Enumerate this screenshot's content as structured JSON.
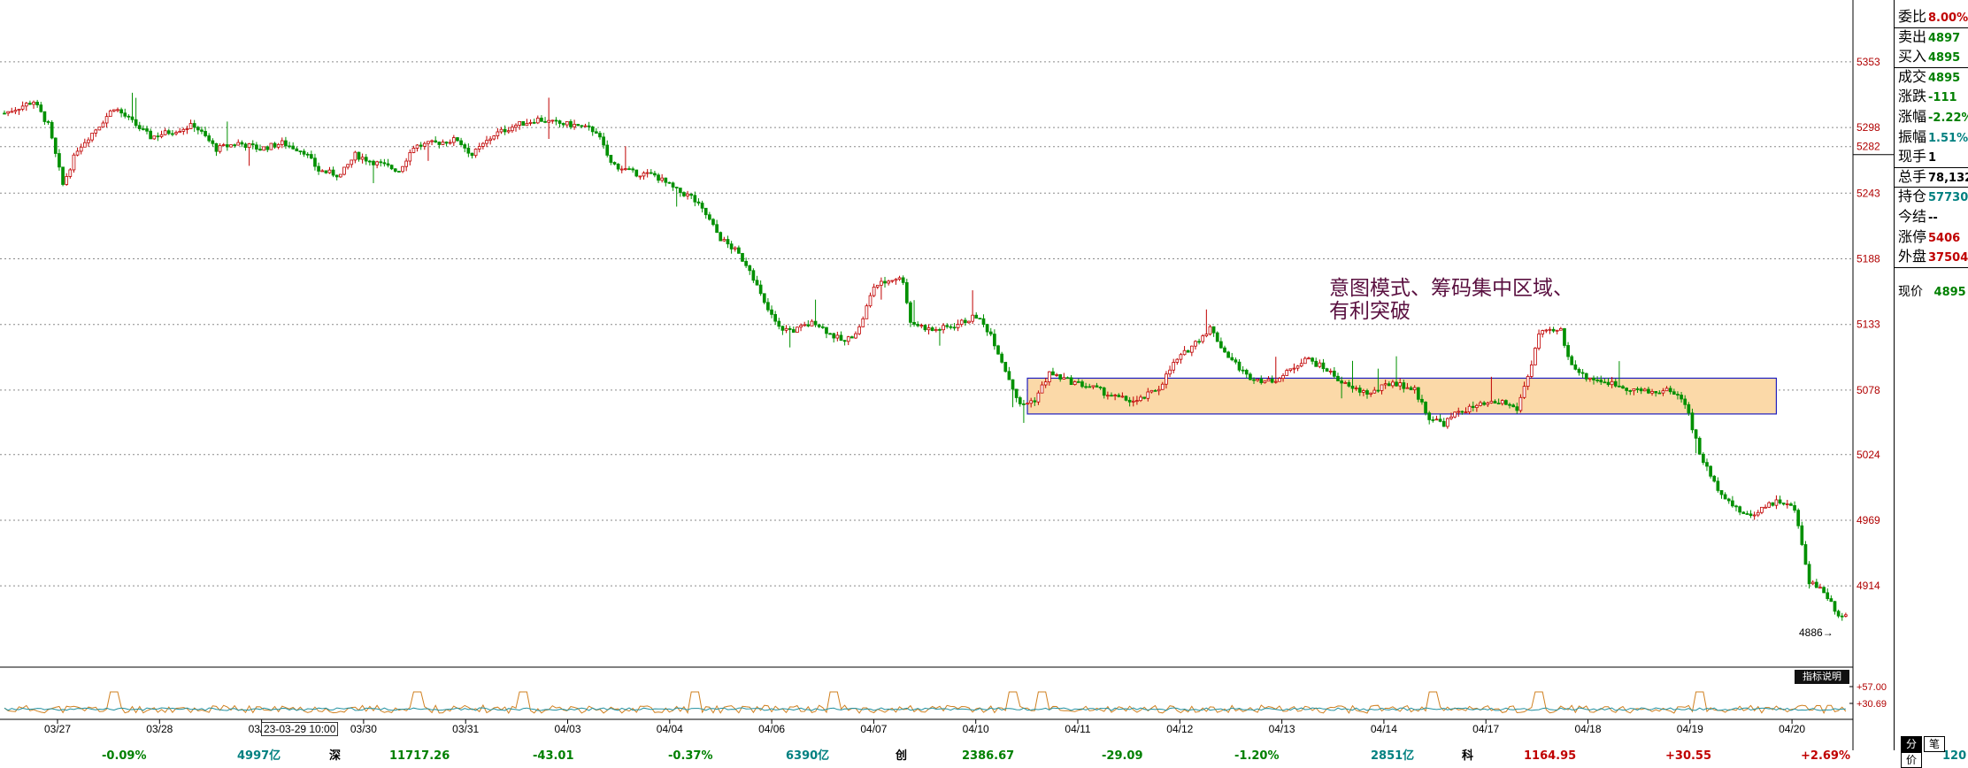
{
  "chart_data": {
    "type": "candlestick",
    "y_ticks": [
      "5353",
      "5298",
      "5282",
      "5243",
      "5188",
      "5133",
      "5078",
      "5024",
      "4969",
      "4914"
    ],
    "ylim": [
      4860,
      5390
    ],
    "x_ticks": [
      "03/27",
      "03/28",
      "03/29",
      "03/30",
      "03/31",
      "04/03",
      "04/04",
      "04/06",
      "04/07",
      "04/10",
      "04/11",
      "04/12",
      "04/13",
      "04/14",
      "04/17",
      "04/18",
      "04/19",
      "04/20"
    ],
    "last_price_label": "4886",
    "highlight_box": {
      "y_top": 5088,
      "y_bottom": 5058,
      "x_start_index": 280,
      "x_end_index": 485
    },
    "indicator_ticks": [
      "+57.00",
      "+30.69"
    ],
    "candles_path": [
      [
        0,
        5310
      ],
      [
        8,
        5320
      ],
      [
        12,
        5300
      ],
      [
        16,
        5250
      ],
      [
        20,
        5280
      ],
      [
        26,
        5300
      ],
      [
        30,
        5315
      ],
      [
        34,
        5305
      ],
      [
        40,
        5290
      ],
      [
        46,
        5295
      ],
      [
        52,
        5300
      ],
      [
        58,
        5280
      ],
      [
        64,
        5285
      ],
      [
        70,
        5280
      ],
      [
        76,
        5285
      ],
      [
        82,
        5278
      ],
      [
        86,
        5262
      ],
      [
        92,
        5258
      ],
      [
        96,
        5275
      ],
      [
        102,
        5268
      ],
      [
        108,
        5262
      ],
      [
        112,
        5282
      ],
      [
        118,
        5285
      ],
      [
        124,
        5288
      ],
      [
        128,
        5275
      ],
      [
        134,
        5292
      ],
      [
        140,
        5300
      ],
      [
        146,
        5305
      ],
      [
        150,
        5302
      ],
      [
        156,
        5300
      ],
      [
        162,
        5295
      ],
      [
        166,
        5268
      ],
      [
        172,
        5260
      ],
      [
        178,
        5258
      ],
      [
        184,
        5245
      ],
      [
        188,
        5240
      ],
      [
        192,
        5225
      ],
      [
        196,
        5205
      ],
      [
        200,
        5195
      ],
      [
        204,
        5180
      ],
      [
        208,
        5150
      ],
      [
        212,
        5130
      ],
      [
        216,
        5128
      ],
      [
        222,
        5135
      ],
      [
        226,
        5125
      ],
      [
        230,
        5118
      ],
      [
        234,
        5130
      ],
      [
        238,
        5165
      ],
      [
        244,
        5172
      ],
      [
        246,
        5170
      ],
      [
        248,
        5135
      ],
      [
        254,
        5128
      ],
      [
        260,
        5132
      ],
      [
        266,
        5140
      ],
      [
        270,
        5125
      ],
      [
        274,
        5095
      ],
      [
        278,
        5065
      ],
      [
        282,
        5070
      ],
      [
        286,
        5092
      ],
      [
        292,
        5085
      ],
      [
        298,
        5080
      ],
      [
        304,
        5072
      ],
      [
        310,
        5068
      ],
      [
        316,
        5080
      ],
      [
        320,
        5100
      ],
      [
        326,
        5118
      ],
      [
        330,
        5130
      ],
      [
        334,
        5110
      ],
      [
        340,
        5090
      ],
      [
        346,
        5085
      ],
      [
        350,
        5090
      ],
      [
        356,
        5105
      ],
      [
        362,
        5095
      ],
      [
        368,
        5080
      ],
      [
        374,
        5075
      ],
      [
        380,
        5085
      ],
      [
        386,
        5078
      ],
      [
        390,
        5055
      ],
      [
        394,
        5050
      ],
      [
        398,
        5060
      ],
      [
        404,
        5065
      ],
      [
        410,
        5068
      ],
      [
        414,
        5062
      ],
      [
        418,
        5100
      ],
      [
        420,
        5125
      ],
      [
        426,
        5128
      ],
      [
        428,
        5105
      ],
      [
        432,
        5090
      ],
      [
        438,
        5085
      ],
      [
        444,
        5080
      ],
      [
        450,
        5076
      ],
      [
        456,
        5078
      ],
      [
        460,
        5068
      ],
      [
        464,
        5025
      ],
      [
        468,
        5000
      ],
      [
        474,
        4978
      ],
      [
        478,
        4972
      ],
      [
        482,
        4982
      ],
      [
        486,
        4985
      ],
      [
        490,
        4978
      ],
      [
        494,
        4918
      ],
      [
        498,
        4910
      ],
      [
        502,
        4890
      ]
    ],
    "volume_spikes": [
      30,
      113,
      142,
      189,
      227,
      276,
      284,
      391,
      420,
      464
    ]
  },
  "annotation": {
    "line1": "意图模式、筹码集中区域、",
    "line2": "有利突破"
  },
  "indicator_button": "指标说明",
  "tooltip_time": "23-03-29 10:00",
  "side_panel": {
    "rows": [
      {
        "label": "委比",
        "value": "8.00%",
        "color": "#c00000"
      },
      {
        "label": "卖出",
        "value": "4897",
        "color": "#008000"
      },
      {
        "label": "买入",
        "value": "4895",
        "color": "#008000"
      },
      {
        "label": "成交",
        "value": "4895",
        "color": "#008000"
      },
      {
        "label": "涨跌",
        "value": "-111",
        "color": "#008000"
      },
      {
        "label": "涨幅",
        "value": "-2.22%",
        "color": "#008000"
      },
      {
        "label": "振幅",
        "value": "1.51%",
        "color": "#008080"
      },
      {
        "label": "现手",
        "value": "1",
        "color": "#000000"
      },
      {
        "label": "总手",
        "value": "78,132",
        "color": "#000000"
      },
      {
        "label": "持仓",
        "value": "57730",
        "color": "#008080"
      },
      {
        "label": "今结",
        "value": "--",
        "color": "#000000"
      },
      {
        "label": "涨停",
        "value": "5406",
        "color": "#c00000"
      },
      {
        "label": "外盘",
        "value": "37504",
        "color": "#c00000"
      }
    ],
    "current_price_label": "现价",
    "current_price_value": "4895",
    "tabs": [
      "分",
      "笔",
      "价"
    ]
  },
  "status_bar": [
    {
      "text": "-0.09%",
      "color": "#008000"
    },
    {
      "text": "4997亿",
      "color": "#008080"
    },
    {
      "text": "深",
      "color": "#000000"
    },
    {
      "text": "11717.26",
      "color": "#008000"
    },
    {
      "text": "-43.01",
      "color": "#008000"
    },
    {
      "text": "-0.37%",
      "color": "#008000"
    },
    {
      "text": "6390亿",
      "color": "#008080"
    },
    {
      "text": "创",
      "color": "#000000"
    },
    {
      "text": "2386.67",
      "color": "#008000"
    },
    {
      "text": "-29.09",
      "color": "#008000"
    },
    {
      "text": "-1.20%",
      "color": "#008000"
    },
    {
      "text": "2851亿",
      "color": "#008080"
    },
    {
      "text": "科",
      "color": "#000000"
    },
    {
      "text": "1164.95",
      "color": "#c00000"
    },
    {
      "text": "+30.55",
      "color": "#c00000"
    },
    {
      "text": "+2.69%",
      "color": "#c00000"
    },
    {
      "text": "120",
      "color": "#008080"
    }
  ],
  "colors": {
    "up": "#c00000",
    "down": "#009000",
    "grid": "#8a8a8a",
    "box_fill": "#fbd9a8",
    "box_stroke": "#2020c0"
  }
}
